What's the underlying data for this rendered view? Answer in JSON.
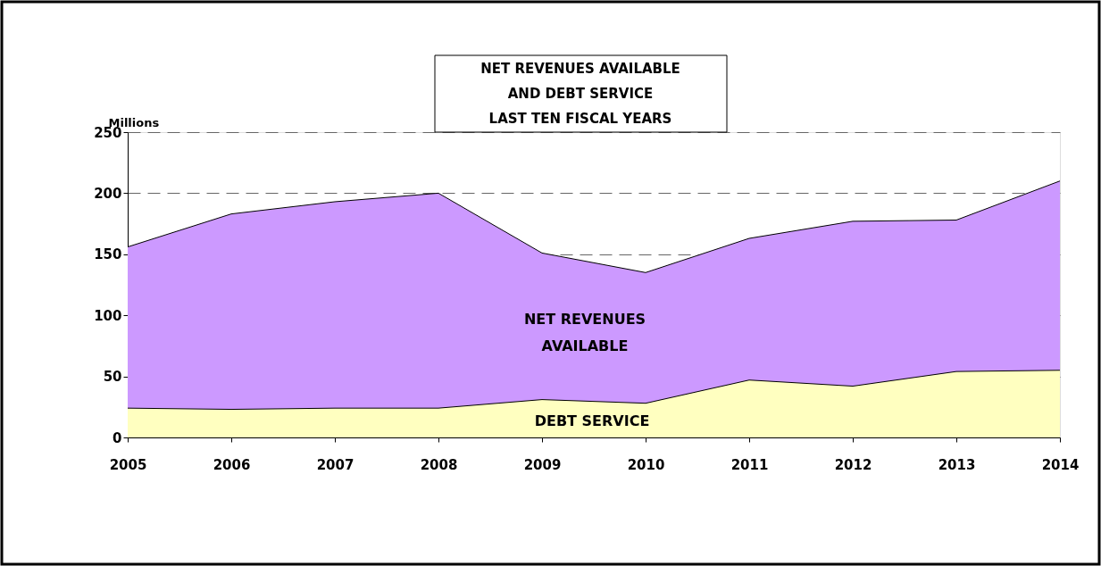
{
  "chart_data": {
    "type": "area",
    "title": "NET REVENUES AVAILABLE\nAND DEBT SERVICE\nLAST TEN FISCAL YEARS",
    "ylabel": "Millions",
    "categories": [
      "2005",
      "2006",
      "2007",
      "2008",
      "2009",
      "2010",
      "2011",
      "2012",
      "2013",
      "2014"
    ],
    "series": [
      {
        "name": "NET REVENUES AVAILABLE",
        "color": "#cc99ff",
        "values": [
          156,
          183,
          193,
          200,
          151,
          135,
          163,
          177,
          178,
          210
        ]
      },
      {
        "name": "DEBT SERVICE",
        "color": "#ffffc0",
        "values": [
          24,
          23,
          24,
          24,
          31,
          28,
          47,
          42,
          54,
          55
        ]
      }
    ],
    "ylim": [
      0,
      250
    ],
    "yticks": [
      0,
      50,
      100,
      150,
      200,
      250
    ],
    "grid": "y",
    "legend": false
  }
}
